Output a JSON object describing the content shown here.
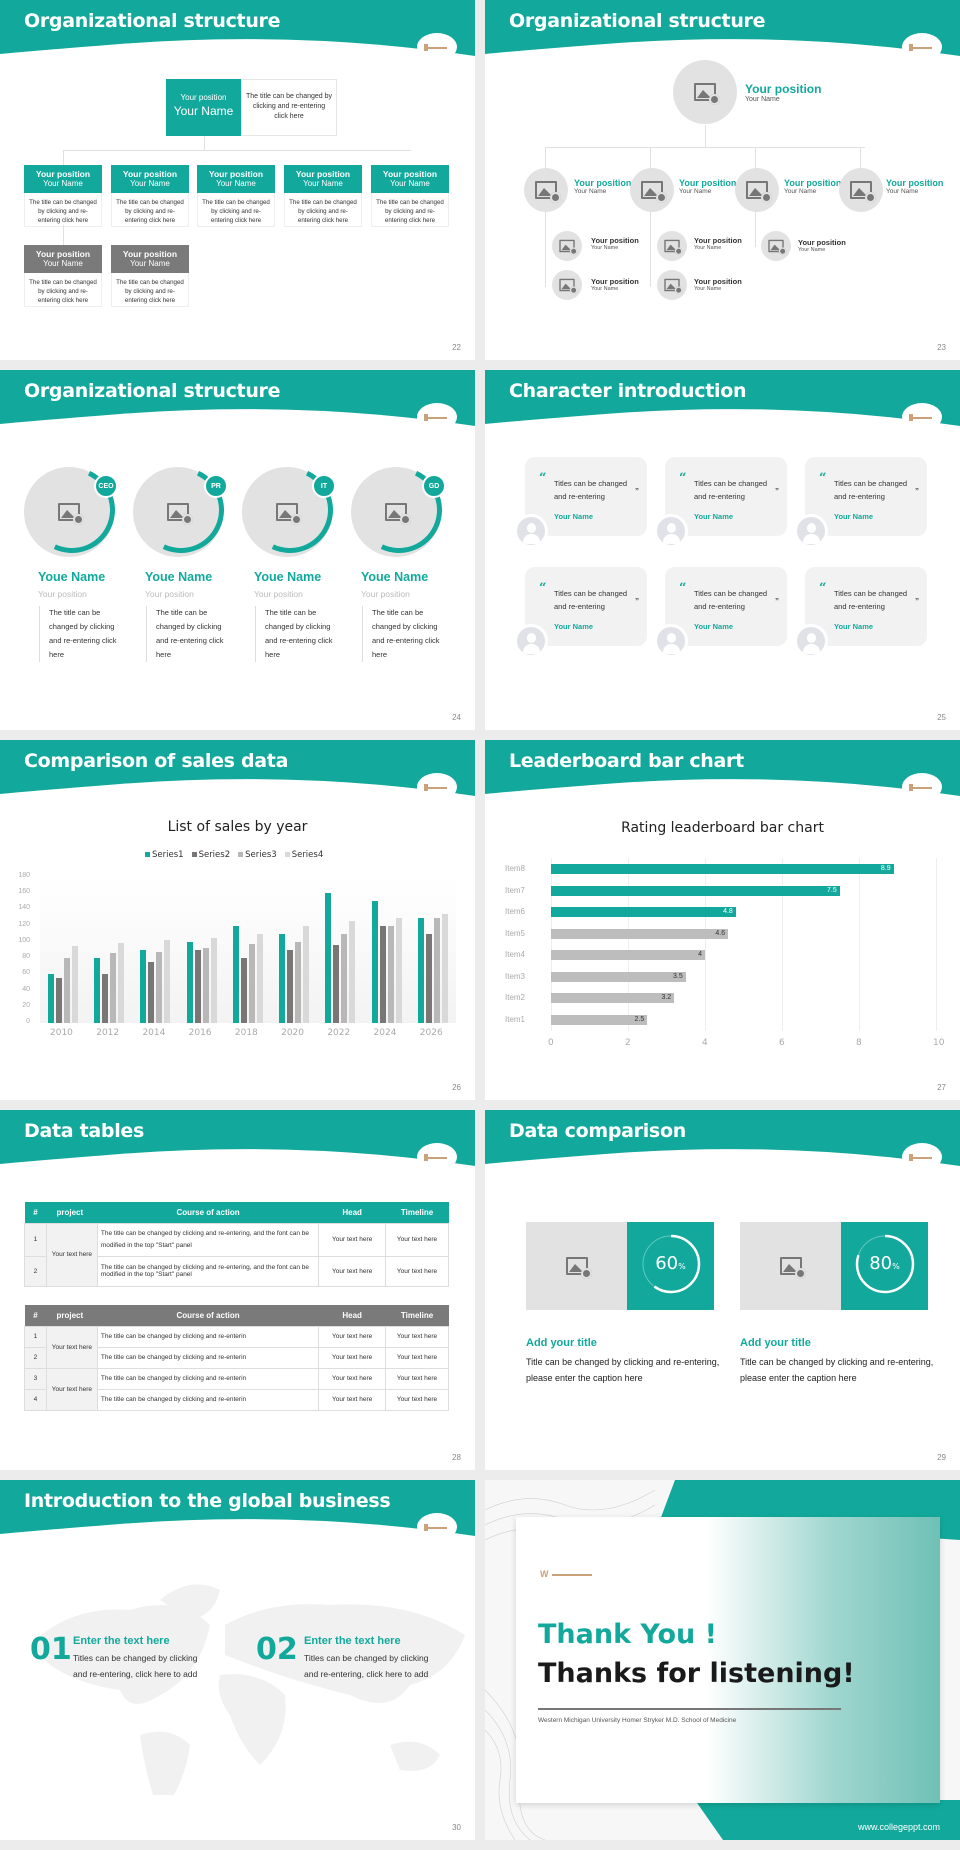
{
  "theme": {
    "accent": "#12a99c",
    "gray_header": "#7a7a7a",
    "light_gray": "#e3e2e2"
  },
  "slides": {
    "s22": {
      "title": "Organizational structure",
      "page": "22",
      "top": {
        "position": "Your position",
        "name": "Your Name",
        "desc": "The title can be changed by clicking and re-entering click here"
      },
      "cards": [
        {
          "position": "Your position",
          "name": "Your Name",
          "desc": "The title can be changed by clicking and re-entering click here"
        },
        {
          "position": "Your position",
          "name": "Your Name",
          "desc": "The title can be changed by clicking and re-entering click here"
        },
        {
          "position": "Your position",
          "name": "Your Name",
          "desc": "The title can be changed by clicking and re-entering click here"
        },
        {
          "position": "Your position",
          "name": "Your Name",
          "desc": "The title can be changed by clicking and re-entering click here"
        },
        {
          "position": "Your position",
          "name": "Your Name",
          "desc": "The title can be changed by clicking and re-entering click here"
        },
        {
          "position": "Your position",
          "name": "Your Name",
          "desc": "The title can be changed by clicking and re-entering click here"
        },
        {
          "position": "Your position",
          "name": "Your Name",
          "desc": "The title can be changed by clicking and re-entering click here"
        }
      ]
    },
    "s23": {
      "title": "Organizational structure",
      "page": "23",
      "top": {
        "position": "Your position",
        "name": "Your Name"
      },
      "level2": [
        {
          "position": "Your position",
          "name": "Your Name"
        },
        {
          "position": "Your position",
          "name": "Your Name"
        },
        {
          "position": "Your position",
          "name": "Your Name"
        },
        {
          "position": "Your position",
          "name": "Your Name"
        }
      ],
      "level3": [
        {
          "position": "Your position",
          "name": "Your Name"
        },
        {
          "position": "Your position",
          "name": "Your Name"
        },
        {
          "position": "Your position",
          "name": "Your Name"
        },
        {
          "position": "Your position",
          "name": "Your Name"
        },
        {
          "position": "Your position",
          "name": "Your Name"
        }
      ]
    },
    "s24": {
      "title": "Organizational structure",
      "page": "24",
      "people": [
        {
          "badge": "CEO",
          "name": "Youe Name",
          "position": "Your position",
          "desc": "The title can be changed by clicking and re-entering click here"
        },
        {
          "badge": "PR",
          "name": "Youe Name",
          "position": "Your position",
          "desc": "The title can be changed by clicking and re-entering click here"
        },
        {
          "badge": "IT",
          "name": "Youe Name",
          "position": "Your position",
          "desc": "The title can be changed by clicking and re-entering click here"
        },
        {
          "badge": "GD",
          "name": "Youe Name",
          "position": "Your position",
          "desc": "The title can be changed by clicking and re-entering click here"
        }
      ]
    },
    "s25": {
      "title": "Character introduction",
      "page": "25",
      "quotes": [
        {
          "text": "Titles can be changed and re-entering",
          "name": "Your Name"
        },
        {
          "text": "Titles can be changed and re-entering",
          "name": "Your Name"
        },
        {
          "text": "Titles can be changed and re-entering",
          "name": "Your Name"
        },
        {
          "text": "Titles can be changed and re-entering",
          "name": "Your Name"
        },
        {
          "text": "Titles can be changed and re-entering",
          "name": "Your Name"
        },
        {
          "text": "Titles can be changed and re-entering",
          "name": "Your Name"
        }
      ]
    },
    "s26": {
      "title": "Comparison of sales data",
      "page": "26"
    },
    "s27": {
      "title": "Leaderboard bar chart",
      "page": "27"
    },
    "s28": {
      "title": "Data tables",
      "page": "28",
      "headers": [
        "#",
        "project",
        "Course of action",
        "Head",
        "Timeline"
      ],
      "table1": [
        {
          "n": "1",
          "project": "Your text here",
          "action": "The title can be changed by clicking and re-entering, and the font can be modified in the top \"Start\" panel",
          "head": "Your text here",
          "timeline": "Your text here"
        },
        {
          "n": "2",
          "project": "",
          "action": "The title can be changed by clicking and re-entering, and the font can be modified in the top \"Start\" panel",
          "head": "Your text here",
          "timeline": "Your text here"
        }
      ],
      "table2": [
        {
          "n": "1",
          "project": "Your text here",
          "action": "The title can be changed by clicking and re-enterin",
          "head": "Your text here",
          "timeline": "Your text here"
        },
        {
          "n": "2",
          "project": "",
          "action": "The title can be changed by clicking and re-enterin",
          "head": "Your text here",
          "timeline": "Your text here"
        },
        {
          "n": "3",
          "project": "Your text here",
          "action": "The title can be changed by clicking and re-enterin",
          "head": "Your text here",
          "timeline": "Your text here"
        },
        {
          "n": "4",
          "project": "",
          "action": "The title can be changed by clicking and re-enterin",
          "head": "Your text here",
          "timeline": "Your text here"
        }
      ]
    },
    "s29": {
      "title": "Data comparison",
      "page": "29",
      "items": [
        {
          "value": "60",
          "unit": "%",
          "percent": 60,
          "title": "Add your title",
          "desc": "Title can be changed by clicking and re-entering, please enter the caption here"
        },
        {
          "value": "80",
          "unit": "%",
          "percent": 80,
          "title": "Add your title",
          "desc": "Title can be changed by clicking and re-entering, please enter the caption here"
        }
      ]
    },
    "s30": {
      "title": "Introduction to the global business",
      "page": "30",
      "items": [
        {
          "num": "01",
          "heading": "Enter the text here",
          "desc": "Titles can be changed by clicking and re-entering, click here to add"
        },
        {
          "num": "02",
          "heading": "Enter the text here",
          "desc": "Titles can be changed by clicking and re-entering, click here to add"
        }
      ]
    },
    "s31": {
      "thank": "Thank You !",
      "listening": "Thanks for listening!",
      "university": "Western Michigan University Homer Stryker M.D. School of Medicine",
      "url": "www.collegeppt.com"
    }
  },
  "chart_data": [
    {
      "type": "bar",
      "title": "List of sales by year",
      "categories": [
        "2010",
        "2012",
        "2014",
        "2016",
        "2018",
        "2020",
        "2022",
        "2024",
        "2026"
      ],
      "series": [
        {
          "name": "Series1",
          "color": "#12a99c",
          "values": [
            60,
            80,
            90,
            100,
            120,
            110,
            160,
            150,
            130
          ]
        },
        {
          "name": "Series2",
          "color": "#7a7676",
          "values": [
            55,
            60,
            75,
            90,
            80,
            90,
            96,
            120,
            110
          ]
        },
        {
          "name": "Series3",
          "color": "#b8b8b8",
          "values": [
            80,
            86,
            88,
            92,
            98,
            100,
            110,
            120,
            130
          ]
        },
        {
          "name": "Series4",
          "color": "#d9d9d9",
          "values": [
            95,
            99,
            102,
            105,
            110,
            120,
            126,
            130,
            135
          ]
        }
      ],
      "yticks": [
        "0",
        "20",
        "40",
        "60",
        "80",
        "100",
        "120",
        "140",
        "160",
        "180"
      ],
      "ylim": [
        0,
        180
      ],
      "xlabel": "",
      "ylabel": "",
      "legend_position": "top",
      "grid": true
    },
    {
      "type": "bar",
      "orientation": "horizontal",
      "title": "Rating leaderboard bar chart",
      "categories": [
        "Item8",
        "Item7",
        "Item6",
        "Item5",
        "Item4",
        "Item3",
        "Item2",
        "Item1"
      ],
      "values": [
        8.9,
        7.5,
        4.8,
        4.6,
        4,
        3.5,
        3.2,
        2.5
      ],
      "labels": [
        "8.9",
        "7.5",
        "4.8",
        "4.6",
        "4",
        "3.5",
        "3.2",
        "2.5"
      ],
      "highlight_top": 3,
      "xticks": [
        "0",
        "2",
        "4",
        "6",
        "8",
        "10"
      ],
      "xlim": [
        0,
        10
      ],
      "xlabel": "",
      "ylabel": "",
      "grid": true
    }
  ]
}
